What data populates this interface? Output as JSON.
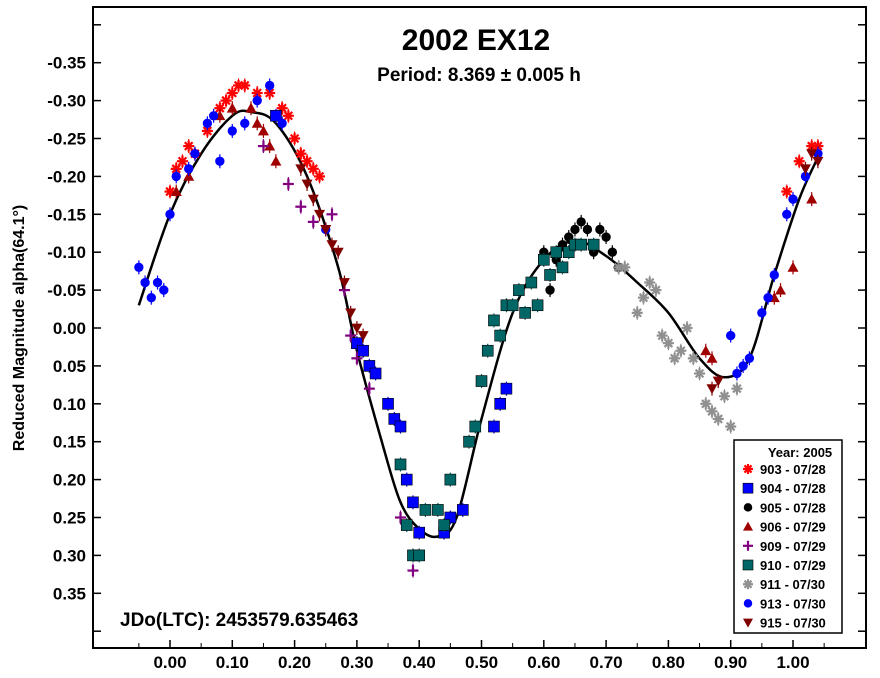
{
  "chart_data": {
    "type": "scatter",
    "title": "2002 EX12",
    "subtitle": "Period: 8.369 ± 0.005 h",
    "xlabel": "",
    "ylabel": "Reduced Magnitude alpha(64.1°)",
    "annotation": "JDo(LTC): 2453579.635463",
    "xlim": [
      -0.12,
      1.12
    ],
    "ylim": [
      0.4,
      -0.4
    ],
    "y_inverted": true,
    "x_ticks": [
      "0.00",
      "0.10",
      "0.20",
      "0.30",
      "0.40",
      "0.50",
      "0.60",
      "0.70",
      "0.80",
      "0.90",
      "1.00"
    ],
    "y_ticks": [
      "-0.35",
      "-0.30",
      "-0.25",
      "-0.20",
      "-0.15",
      "-0.10",
      "-0.05",
      "0.00",
      "0.05",
      "0.10",
      "0.15",
      "0.20",
      "0.25",
      "0.30",
      "0.35"
    ],
    "grid": false,
    "legend_title": "Year: 2005",
    "legend_position": "bottom-right",
    "fit_curve": {
      "color": "#000000",
      "points": [
        [
          -0.05,
          -0.03
        ],
        [
          0.0,
          -0.15
        ],
        [
          0.05,
          -0.23
        ],
        [
          0.1,
          -0.28
        ],
        [
          0.13,
          -0.285
        ],
        [
          0.17,
          -0.27
        ],
        [
          0.22,
          -0.2
        ],
        [
          0.27,
          -0.08
        ],
        [
          0.3,
          0.03
        ],
        [
          0.34,
          0.15
        ],
        [
          0.37,
          0.23
        ],
        [
          0.4,
          0.265
        ],
        [
          0.43,
          0.275
        ],
        [
          0.46,
          0.25
        ],
        [
          0.5,
          0.12
        ],
        [
          0.55,
          -0.02
        ],
        [
          0.6,
          -0.09
        ],
        [
          0.65,
          -0.115
        ],
        [
          0.7,
          -0.095
        ],
        [
          0.75,
          -0.06
        ],
        [
          0.8,
          -0.02
        ],
        [
          0.85,
          0.04
        ],
        [
          0.89,
          0.065
        ],
        [
          0.93,
          0.04
        ],
        [
          0.97,
          -0.07
        ],
        [
          1.01,
          -0.17
        ],
        [
          1.04,
          -0.225
        ]
      ]
    },
    "series": [
      {
        "name": "903 - 07/28",
        "marker": "asterisk",
        "color": "#ff0000",
        "points": [
          [
            0.0,
            -0.18
          ],
          [
            0.01,
            -0.21
          ],
          [
            0.02,
            -0.22
          ],
          [
            0.03,
            -0.24
          ],
          [
            0.04,
            -0.23
          ],
          [
            0.06,
            -0.26
          ],
          [
            0.08,
            -0.29
          ],
          [
            0.09,
            -0.3
          ],
          [
            0.1,
            -0.31
          ],
          [
            0.11,
            -0.32
          ],
          [
            0.12,
            -0.32
          ],
          [
            0.14,
            -0.31
          ],
          [
            0.16,
            -0.31
          ],
          [
            0.18,
            -0.29
          ],
          [
            0.19,
            -0.28
          ],
          [
            0.2,
            -0.25
          ],
          [
            0.21,
            -0.23
          ],
          [
            0.22,
            -0.22
          ],
          [
            0.23,
            -0.21
          ],
          [
            0.24,
            -0.2
          ],
          [
            0.99,
            -0.18
          ],
          [
            1.01,
            -0.22
          ],
          [
            1.03,
            -0.24
          ],
          [
            1.04,
            -0.24
          ]
        ]
      },
      {
        "name": "904 - 07/28",
        "marker": "square",
        "color": "#0000ff",
        "points": [
          [
            0.17,
            -0.28
          ],
          [
            0.3,
            0.02
          ],
          [
            0.31,
            0.03
          ],
          [
            0.32,
            0.05
          ],
          [
            0.33,
            0.06
          ],
          [
            0.35,
            0.1
          ],
          [
            0.36,
            0.12
          ],
          [
            0.37,
            0.13
          ],
          [
            0.38,
            0.2
          ],
          [
            0.39,
            0.23
          ],
          [
            0.4,
            0.27
          ],
          [
            0.44,
            0.27
          ],
          [
            0.45,
            0.25
          ],
          [
            0.47,
            0.24
          ],
          [
            0.52,
            0.13
          ],
          [
            0.53,
            0.1
          ],
          [
            0.54,
            0.08
          ]
        ]
      },
      {
        "name": "905 - 07/28",
        "marker": "circle",
        "color": "#000000",
        "points": [
          [
            0.6,
            -0.1
          ],
          [
            0.61,
            -0.05
          ],
          [
            0.62,
            -0.09
          ],
          [
            0.63,
            -0.11
          ],
          [
            0.64,
            -0.12
          ],
          [
            0.65,
            -0.13
          ],
          [
            0.66,
            -0.14
          ],
          [
            0.67,
            -0.13
          ],
          [
            0.68,
            -0.1
          ],
          [
            0.69,
            -0.13
          ],
          [
            0.7,
            -0.12
          ],
          [
            0.71,
            -0.1
          ],
          [
            0.72,
            -0.08
          ]
        ]
      },
      {
        "name": "906 - 07/29",
        "marker": "triangle-up",
        "color": "#a00000",
        "points": [
          [
            0.01,
            -0.18
          ],
          [
            0.03,
            -0.2
          ],
          [
            0.08,
            -0.28
          ],
          [
            0.1,
            -0.29
          ],
          [
            0.13,
            -0.29
          ],
          [
            0.14,
            -0.27
          ],
          [
            0.15,
            -0.26
          ],
          [
            0.16,
            -0.24
          ],
          [
            0.17,
            -0.22
          ],
          [
            0.86,
            0.03
          ],
          [
            0.87,
            0.04
          ],
          [
            0.97,
            -0.04
          ],
          [
            0.98,
            -0.05
          ],
          [
            1.0,
            -0.08
          ],
          [
            1.03,
            -0.17
          ]
        ]
      },
      {
        "name": "909 - 07/29",
        "marker": "plus",
        "color": "#800080",
        "points": [
          [
            0.15,
            -0.24
          ],
          [
            0.19,
            -0.19
          ],
          [
            0.21,
            -0.16
          ],
          [
            0.23,
            -0.14
          ],
          [
            0.26,
            -0.15
          ],
          [
            0.28,
            -0.05
          ],
          [
            0.29,
            0.01
          ],
          [
            0.3,
            0.04
          ],
          [
            0.32,
            0.08
          ],
          [
            0.37,
            0.25
          ],
          [
            0.39,
            0.32
          ]
        ]
      },
      {
        "name": "910 - 07/29",
        "marker": "square",
        "color": "#006666",
        "points": [
          [
            0.37,
            0.18
          ],
          [
            0.38,
            0.26
          ],
          [
            0.39,
            0.3
          ],
          [
            0.4,
            0.3
          ],
          [
            0.41,
            0.24
          ],
          [
            0.43,
            0.24
          ],
          [
            0.44,
            0.26
          ],
          [
            0.45,
            0.2
          ],
          [
            0.48,
            0.15
          ],
          [
            0.49,
            0.13
          ],
          [
            0.5,
            0.07
          ],
          [
            0.51,
            0.03
          ],
          [
            0.52,
            -0.01
          ],
          [
            0.53,
            0.01
          ],
          [
            0.54,
            -0.03
          ],
          [
            0.55,
            -0.03
          ],
          [
            0.56,
            -0.05
          ],
          [
            0.57,
            -0.02
          ],
          [
            0.58,
            -0.06
          ],
          [
            0.59,
            -0.03
          ],
          [
            0.6,
            -0.09
          ],
          [
            0.61,
            -0.07
          ],
          [
            0.62,
            -0.1
          ],
          [
            0.63,
            -0.08
          ],
          [
            0.64,
            -0.1
          ],
          [
            0.65,
            -0.11
          ],
          [
            0.66,
            -0.11
          ],
          [
            0.68,
            -0.11
          ]
        ]
      },
      {
        "name": "911 - 07/30",
        "marker": "asterisk",
        "color": "#909090",
        "points": [
          [
            0.72,
            -0.08
          ],
          [
            0.73,
            -0.08
          ],
          [
            0.75,
            -0.02
          ],
          [
            0.76,
            -0.04
          ],
          [
            0.77,
            -0.06
          ],
          [
            0.78,
            -0.05
          ],
          [
            0.79,
            0.01
          ],
          [
            0.8,
            0.02
          ],
          [
            0.81,
            0.04
          ],
          [
            0.82,
            0.03
          ],
          [
            0.83,
            0.0
          ],
          [
            0.84,
            0.04
          ],
          [
            0.85,
            0.06
          ],
          [
            0.86,
            0.1
          ],
          [
            0.87,
            0.11
          ],
          [
            0.88,
            0.12
          ],
          [
            0.89,
            0.09
          ],
          [
            0.9,
            0.13
          ],
          [
            0.91,
            0.08
          ]
        ]
      },
      {
        "name": "913 - 07/30",
        "marker": "circle",
        "color": "#0000ff",
        "points": [
          [
            -0.05,
            -0.08
          ],
          [
            -0.04,
            -0.06
          ],
          [
            -0.03,
            -0.04
          ],
          [
            -0.02,
            -0.06
          ],
          [
            -0.01,
            -0.05
          ],
          [
            0.0,
            -0.15
          ],
          [
            0.01,
            -0.2
          ],
          [
            0.03,
            -0.21
          ],
          [
            0.04,
            -0.23
          ],
          [
            0.06,
            -0.27
          ],
          [
            0.07,
            -0.28
          ],
          [
            0.08,
            -0.22
          ],
          [
            0.1,
            -0.26
          ],
          [
            0.12,
            -0.27
          ],
          [
            0.14,
            -0.3
          ],
          [
            0.16,
            -0.32
          ],
          [
            0.18,
            -0.27
          ],
          [
            0.25,
            -0.13
          ],
          [
            0.9,
            0.01
          ],
          [
            0.91,
            0.06
          ],
          [
            0.92,
            0.05
          ],
          [
            0.93,
            0.04
          ],
          [
            0.95,
            -0.02
          ],
          [
            0.96,
            -0.04
          ],
          [
            0.97,
            -0.07
          ],
          [
            0.99,
            -0.15
          ],
          [
            1.0,
            -0.17
          ],
          [
            1.02,
            -0.2
          ],
          [
            1.04,
            -0.23
          ]
        ]
      },
      {
        "name": "915 - 07/30",
        "marker": "triangle-down",
        "color": "#800000",
        "points": [
          [
            0.21,
            -0.21
          ],
          [
            0.22,
            -0.19
          ],
          [
            0.23,
            -0.17
          ],
          [
            0.24,
            -0.15
          ],
          [
            0.25,
            -0.13
          ],
          [
            0.26,
            -0.11
          ],
          [
            0.27,
            -0.1
          ],
          [
            0.28,
            -0.06
          ],
          [
            0.29,
            -0.02
          ],
          [
            0.3,
            0.0
          ],
          [
            0.31,
            0.01
          ],
          [
            0.87,
            0.08
          ],
          [
            0.88,
            0.07
          ],
          [
            1.02,
            -0.21
          ],
          [
            1.03,
            -0.23
          ],
          [
            1.04,
            -0.22
          ]
        ]
      }
    ]
  }
}
